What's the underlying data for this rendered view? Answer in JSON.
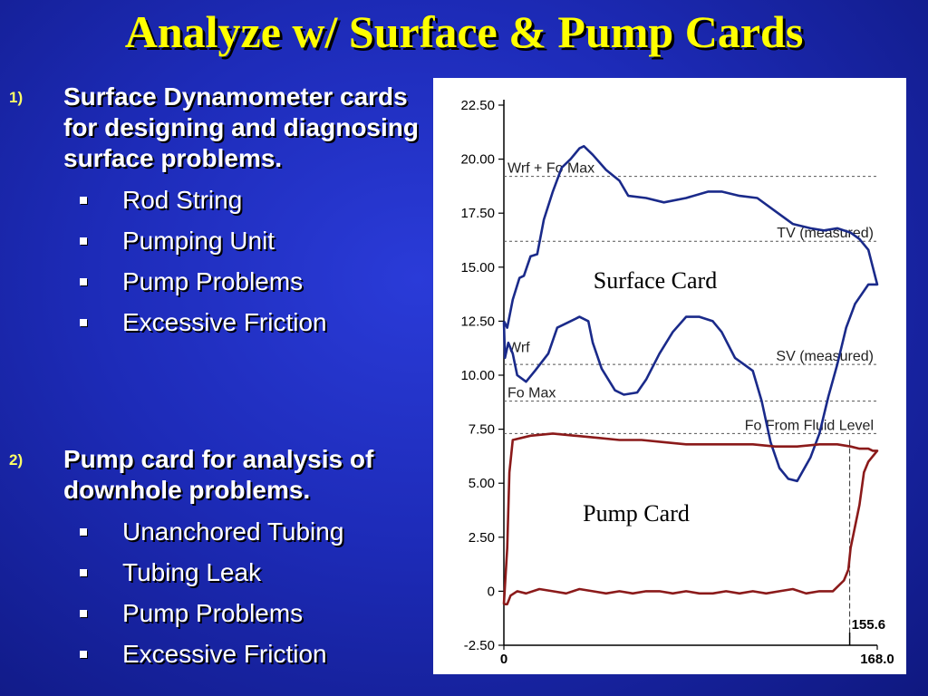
{
  "slide": {
    "title": "Analyze w/ Surface & Pump Cards"
  },
  "bullets": [
    {
      "num": "1)",
      "heading": "Surface Dynamometer cards for designing and diagnosing surface problems.",
      "items": [
        "Rod String",
        "Pumping Unit",
        "Pump Problems",
        "Excessive Friction"
      ]
    },
    {
      "num": "2)",
      "heading": "Pump card for analysis of downhole problems.",
      "items": [
        "Unanchored Tubing",
        "Tubing Leak",
        "Pump Problems",
        "Excessive Friction"
      ]
    }
  ],
  "chart_data": {
    "type": "line",
    "ylim": [
      -2.5,
      22.5
    ],
    "xlim": [
      0,
      168.0
    ],
    "y_ticks": [
      "22.50",
      "20.00",
      "17.50",
      "15.00",
      "12.50",
      "10.00",
      "7.50",
      "5.00",
      "2.50",
      "0",
      "-2.50"
    ],
    "x_ticks": [
      "0",
      "168.0"
    ],
    "grid": false,
    "reference_lines": [
      {
        "label": "Wrf + Fo Max",
        "y": 19.2
      },
      {
        "label": "TV (measured)",
        "y": 16.2
      },
      {
        "label": "SV (measured)",
        "y": 10.5
      },
      {
        "label": "Fo Max",
        "y": 8.8
      },
      {
        "label": "Wrf",
        "y": 10.9
      },
      {
        "label": "Fo From Fluid Level",
        "y": 7.3
      }
    ],
    "stroke_marker": {
      "label": "155.6",
      "x": 155.6
    },
    "series": [
      {
        "name": "Surface Card",
        "color": "#1a2a8a",
        "x": [
          0,
          1.5,
          4,
          7,
          9,
          12,
          15,
          18,
          22,
          26,
          30,
          34,
          36,
          40,
          46,
          52,
          56,
          64,
          72,
          82,
          92,
          98,
          106,
          114,
          122,
          130,
          138,
          144,
          150,
          156,
          160,
          164,
          166,
          168,
          168,
          164,
          158,
          154,
          150,
          146,
          142,
          138,
          132,
          128,
          124,
          120,
          116,
          112,
          108,
          104,
          98,
          94,
          88,
          82,
          76,
          70,
          64,
          60,
          54,
          50,
          44,
          40,
          38,
          34,
          30,
          24,
          20,
          14,
          10,
          6,
          4,
          2,
          0.5,
          0
        ],
        "y": [
          12.5,
          12.2,
          13.5,
          14.5,
          14.6,
          15.5,
          15.6,
          17.2,
          18.5,
          19.6,
          20.0,
          20.5,
          20.6,
          20.2,
          19.5,
          19.0,
          18.3,
          18.2,
          18.0,
          18.2,
          18.5,
          18.5,
          18.3,
          18.2,
          17.6,
          17.0,
          16.8,
          16.7,
          16.8,
          16.6,
          16.3,
          15.8,
          15.0,
          14.2,
          14.2,
          14.2,
          13.3,
          12.2,
          10.5,
          9.0,
          7.3,
          6.2,
          5.1,
          5.2,
          5.7,
          6.9,
          8.8,
          10.2,
          10.5,
          10.8,
          12.0,
          12.5,
          12.7,
          12.7,
          12.0,
          11.0,
          9.8,
          9.2,
          9.1,
          9.3,
          10.3,
          11.5,
          12.5,
          12.7,
          12.5,
          12.2,
          11.0,
          10.2,
          9.7,
          10.0,
          11.0,
          11.5,
          10.8,
          12.5
        ]
      },
      {
        "name": "Pump Card",
        "color": "#8b1a1a",
        "x": [
          0,
          1.5,
          2.5,
          4,
          12,
          22,
          32,
          42,
          52,
          62,
          72,
          82,
          92,
          102,
          112,
          122,
          132,
          142,
          150,
          156,
          160,
          164,
          166,
          168,
          168,
          164,
          162,
          160,
          158,
          156,
          155,
          153,
          148,
          142,
          136,
          130,
          124,
          118,
          112,
          106,
          100,
          94,
          88,
          82,
          76,
          70,
          64,
          58,
          52,
          46,
          40,
          34,
          28,
          22,
          16,
          10,
          6,
          3,
          1.5,
          0
        ],
        "y": [
          -0.6,
          2.0,
          5.5,
          7.0,
          7.2,
          7.3,
          7.2,
          7.1,
          7.0,
          7.0,
          6.9,
          6.8,
          6.8,
          6.8,
          6.8,
          6.7,
          6.7,
          6.8,
          6.8,
          6.7,
          6.6,
          6.6,
          6.5,
          6.5,
          6.5,
          6.0,
          5.5,
          4.0,
          3.0,
          2.0,
          1.0,
          0.5,
          0.0,
          0.0,
          -0.1,
          0.1,
          0.0,
          -0.1,
          0.0,
          -0.1,
          0.0,
          -0.1,
          -0.1,
          0.0,
          -0.1,
          0.0,
          0.0,
          -0.1,
          0.0,
          -0.1,
          0.0,
          0.1,
          -0.1,
          0.0,
          0.1,
          -0.1,
          0.0,
          -0.2,
          -0.6,
          -0.6
        ]
      }
    ],
    "labels": {
      "surface": "Surface Card",
      "pump": "Pump Card"
    }
  }
}
